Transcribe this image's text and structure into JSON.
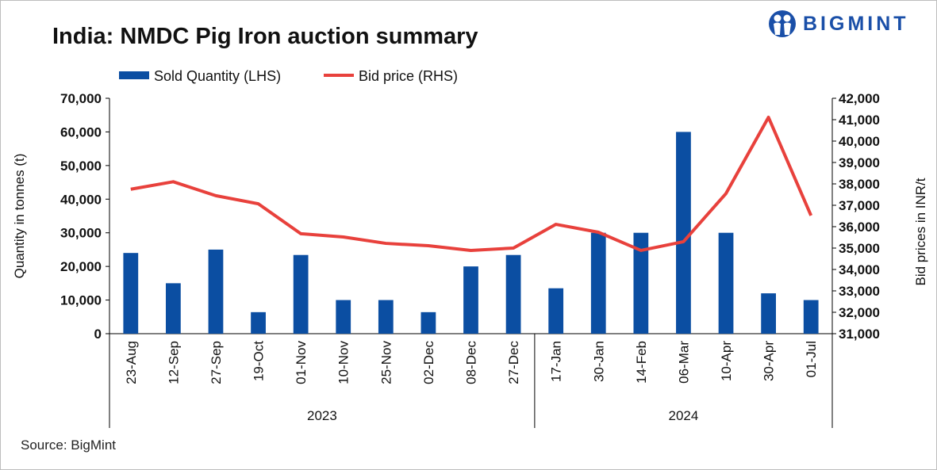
{
  "title": "India: NMDC Pig Iron auction summary",
  "logo": {
    "text": "BIGMINT",
    "color": "#1a4fa8"
  },
  "source": "Source: BigMint",
  "chart_data": {
    "type": "bar+line",
    "title": "India: NMDC Pig Iron auction summary",
    "categories": [
      "23-Aug",
      "12-Sep",
      "27-Sep",
      "19-Oct",
      "01-Nov",
      "10-Nov",
      "25-Nov",
      "02-Dec",
      "08-Dec",
      "27-Dec",
      "17-Jan",
      "30-Jan",
      "14-Feb",
      "06-Mar",
      "10-Apr",
      "30-Apr",
      "01-Jul"
    ],
    "groups": [
      {
        "label": "2023",
        "count": 10
      },
      {
        "label": "2024",
        "count": 7
      }
    ],
    "series": [
      {
        "name": "Sold Quantity (LHS)",
        "type": "bar",
        "axis": "left",
        "color": "#0b4ea2",
        "values": [
          24000,
          15000,
          25000,
          6400,
          23400,
          10000,
          10000,
          6400,
          20000,
          23400,
          13500,
          30000,
          30000,
          60000,
          30000,
          12000,
          10000
        ]
      },
      {
        "name": "Bid price (RHS)",
        "type": "line",
        "axis": "right",
        "color": "#e8413c",
        "values": [
          37750,
          38100,
          37450,
          37070,
          35670,
          35520,
          35220,
          35110,
          34890,
          35000,
          36110,
          35740,
          34890,
          35300,
          37550,
          41110,
          36520
        ]
      }
    ],
    "ylabel": "Quantity in tonnes (t)",
    "y2label": "Bid prices in INR/t",
    "ylim": [
      0,
      70000
    ],
    "y2lim": [
      31000,
      42000
    ],
    "yticks": [
      "0",
      "10,000",
      "20,000",
      "30,000",
      "40,000",
      "50,000",
      "60,000",
      "70,000"
    ],
    "y2ticks": [
      "31,000",
      "32,000",
      "33,000",
      "34,000",
      "35,000",
      "36,000",
      "37,000",
      "38,000",
      "39,000",
      "40,000",
      "41,000",
      "42,000"
    ],
    "legend": "top",
    "grid": false
  }
}
